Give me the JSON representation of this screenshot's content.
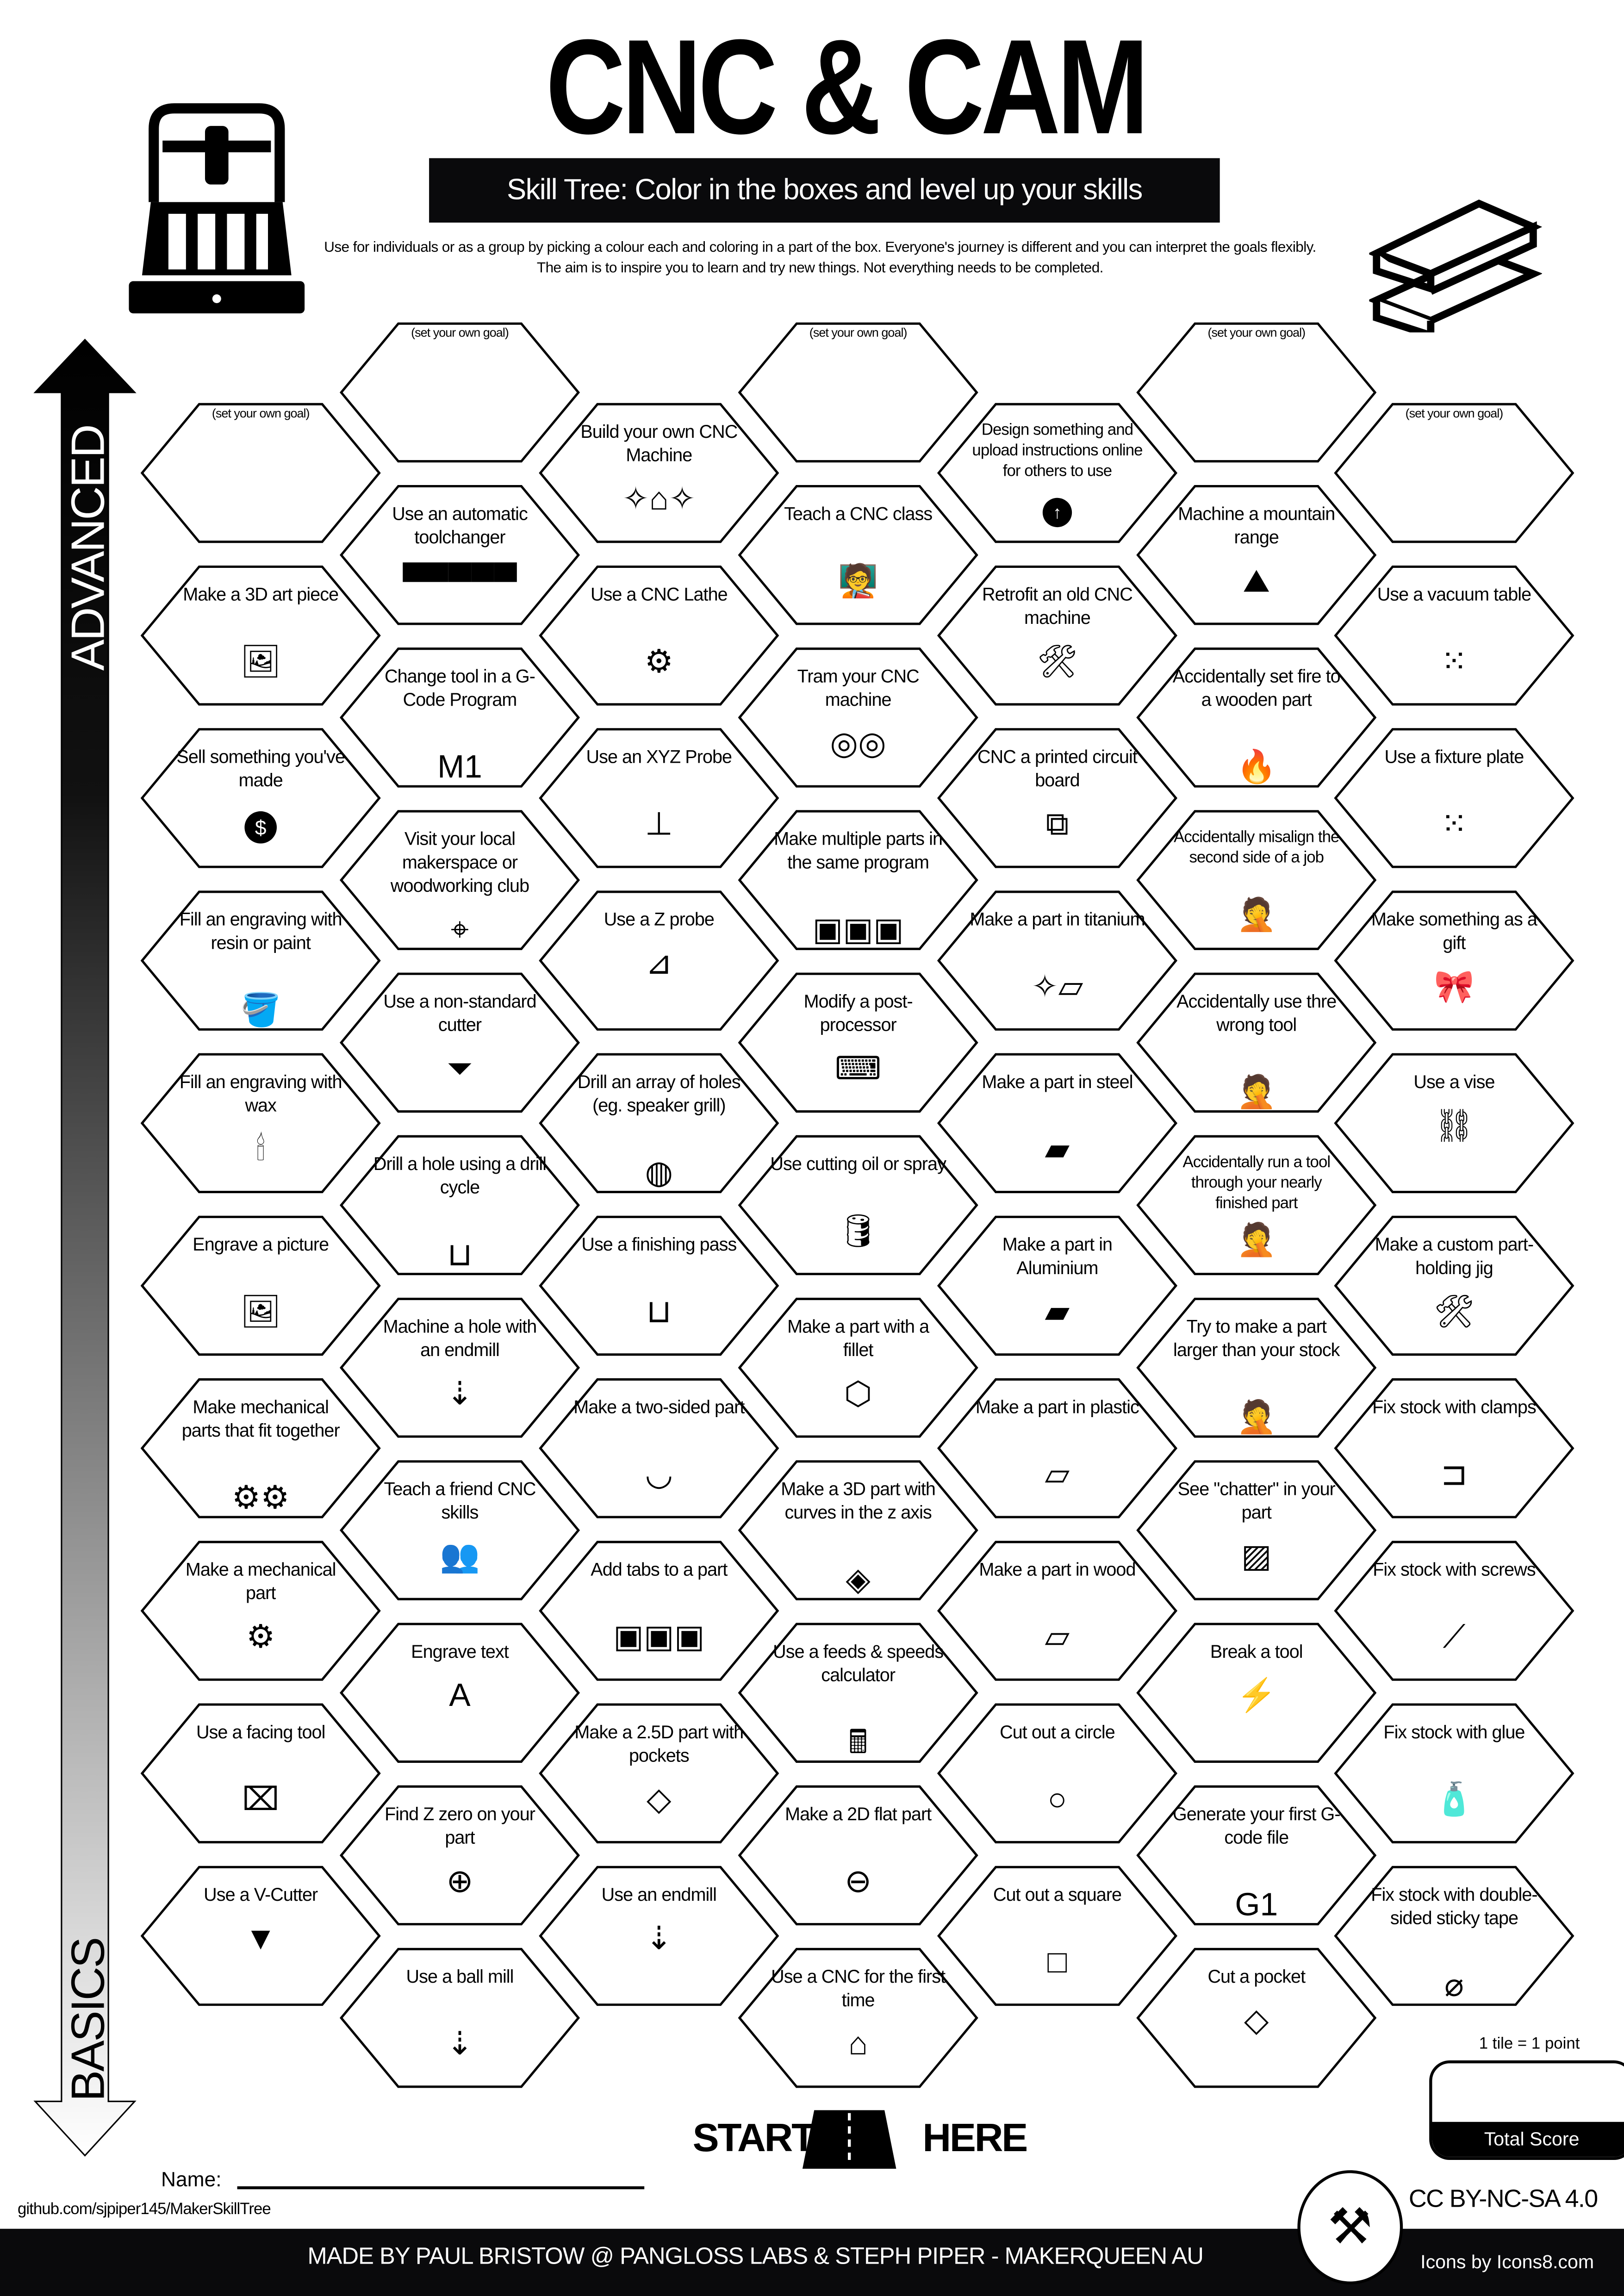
{
  "header": {
    "title": "CNC & CAM",
    "subtitle": "Skill Tree:  Color in the boxes and level up your skills",
    "description": "Use for individuals or as a group by picking a colour each and coloring in a part of the box.  Everyone's journey is different and you can interpret the goals flexibly.  The aim is to inspire you to learn and try new things. Not everything needs to be completed.",
    "left_icon": "cnc-machine-icon",
    "right_icon": "wood-planks-icon"
  },
  "arrow": {
    "top_label": "ADVANCED",
    "bottom_label": "BASICS"
  },
  "columns": [
    [
      {
        "label": "(set your own goal)",
        "goal": true
      },
      {
        "label": "Make a 3D art piece",
        "icon": "easel"
      },
      {
        "label": "Sell something you've made",
        "icon": "dollar"
      },
      {
        "label": "Fill an engraving with resin or paint",
        "icon": "paint-bucket"
      },
      {
        "label": "Fill an engraving with wax",
        "icon": "candle"
      },
      {
        "label": "Engrave a picture",
        "icon": "easel"
      },
      {
        "label": "Make mechanical parts that fit together",
        "icon": "gears"
      },
      {
        "label": "Make a mechanical part",
        "icon": "gear"
      },
      {
        "label": "Use a facing tool",
        "icon": "facing-tool"
      },
      {
        "label": "Use a V-Cutter",
        "icon": "v-cutter"
      }
    ],
    [
      {
        "label": "(set your own goal)",
        "goal": true
      },
      {
        "label": "Use an automatic toolchanger",
        "icon": "toolchanger"
      },
      {
        "label": "Change tool in a G-Code Program",
        "icon": "m1"
      },
      {
        "label": "Visit your local makerspace or woodworking club",
        "icon": "location-pin"
      },
      {
        "label": "Use a non-standard cutter",
        "icon": "cutter"
      },
      {
        "label": "Drill a hole using a drill cycle",
        "icon": "drill-hole"
      },
      {
        "label": "Machine a hole with an endmill",
        "icon": "endmill"
      },
      {
        "label": "Teach a friend CNC skills",
        "icon": "teach-friend"
      },
      {
        "label": "Engrave text",
        "icon": "letter-a"
      },
      {
        "label": "Find Z zero on your part",
        "icon": "crosshair"
      },
      {
        "label": "Use a ball mill",
        "icon": "endmill"
      }
    ],
    [
      {
        "label": "Build your own CNC Machine",
        "icon": "cnc-sparkles"
      },
      {
        "label": "Use a CNC Lathe",
        "icon": "lathe"
      },
      {
        "label": "Use an XYZ Probe",
        "icon": "probe"
      },
      {
        "label": "Use a Z probe",
        "icon": "z-probe"
      },
      {
        "label": "Drill an array of holes (eg. speaker grill)",
        "icon": "speaker-grill"
      },
      {
        "label": "Use a finishing pass",
        "icon": "drill-hole"
      },
      {
        "label": "Make a two-sided part",
        "icon": "bowl"
      },
      {
        "label": "Add tabs to a part",
        "icon": "tabs"
      },
      {
        "label": "Make a 2.5D part with pockets",
        "icon": "pocket"
      },
      {
        "label": "Use an endmill",
        "icon": "endmill"
      }
    ],
    [
      {
        "label": "(set your own goal)",
        "goal": true
      },
      {
        "label": "Teach a CNC class",
        "icon": "teacher"
      },
      {
        "label": "Tram your CNC machine",
        "icon": "gauges"
      },
      {
        "label": "Make multiple parts in the same program",
        "icon": "multi-parts"
      },
      {
        "label": "Modify a post-processor",
        "icon": "keyboard"
      },
      {
        "label": "Use cutting oil or spray",
        "icon": "oil-can"
      },
      {
        "label": "Make a part with a fillet",
        "icon": "fillet-block"
      },
      {
        "label": "Make a 3D part with curves in the z axis",
        "icon": "3d-part"
      },
      {
        "label": "Use a feeds & speeds calculator",
        "icon": "calculator"
      },
      {
        "label": "Make a 2D flat part",
        "icon": "flat-part"
      },
      {
        "label": "Use a CNC for the first time",
        "icon": "cnc-machine"
      }
    ],
    [
      {
        "label": "Design something and upload instructions online for others to use",
        "icon": "upload",
        "small": true
      },
      {
        "label": "Retrofit an old CNC machine",
        "icon": "tools"
      },
      {
        "label": "CNC a printed circuit board",
        "icon": "circuit"
      },
      {
        "label": "Make a part in titanium",
        "icon": "bar-sparkle"
      },
      {
        "label": "Make a part in steel",
        "icon": "bar-striped"
      },
      {
        "label": "Make a part in Aluminium",
        "icon": "bar"
      },
      {
        "label": "Make a part in plastic",
        "icon": "bar-plain"
      },
      {
        "label": "Make a part in wood",
        "icon": "wood"
      },
      {
        "label": "Cut out a circle",
        "icon": "circle"
      },
      {
        "label": "Cut out a square",
        "icon": "square"
      }
    ],
    [
      {
        "label": "(set your own goal)",
        "goal": true
      },
      {
        "label": "Machine a mountain range",
        "icon": "mountain"
      },
      {
        "label": "Accidentally set fire to a wooden part",
        "icon": "fire"
      },
      {
        "label": "Accidentally misalign the second side of a job",
        "icon": "facepalm",
        "small": true
      },
      {
        "label": "Accidentally use thre wrong tool",
        "icon": "facepalm"
      },
      {
        "label": "Accidentally run a tool through your nearly finished part",
        "icon": "facepalm",
        "small": true
      },
      {
        "label": "Try to make a part larger than your stock",
        "icon": "facepalm"
      },
      {
        "label": "See \"chatter\" in your part",
        "icon": "chatter"
      },
      {
        "label": "Break a tool",
        "icon": "broken-tool"
      },
      {
        "label": "Generate your first G-code file",
        "icon": "g1"
      },
      {
        "label": "Cut a pocket",
        "icon": "pocket"
      }
    ],
    [
      {
        "label": "(set your own goal)",
        "goal": true
      },
      {
        "label": "Use a vacuum table",
        "icon": "vacuum-table"
      },
      {
        "label": "Use a fixture plate",
        "icon": "vacuum-table"
      },
      {
        "label": "Make something as a gift",
        "icon": "gift-bow"
      },
      {
        "label": "Use a vise",
        "icon": "vise"
      },
      {
        "label": "Make a custom part-holding jig",
        "icon": "tools"
      },
      {
        "label": "Fix stock with clamps",
        "icon": "clamp"
      },
      {
        "label": "Fix stock with screws",
        "icon": "screw"
      },
      {
        "label": "Fix stock with glue",
        "icon": "glue"
      },
      {
        "label": "Fix stock with double-sided sticky tape",
        "icon": "tape"
      }
    ]
  ],
  "start": {
    "left": "START",
    "right": "HERE",
    "icon": "road-icon"
  },
  "score": {
    "note": "1 tile = 1 point",
    "label": "Total Score"
  },
  "name_label": "Name:",
  "github": "github.com/sjpiper145/MakerSkillTree",
  "license": "CC BY-NC-SA 4.0",
  "footer": {
    "credits": "MADE BY PAUL BRISTOW @ PANGLOSS LABS & STEPH PIPER  -  MAKERQUEEN AU",
    "icons_credit": "Icons by Icons8.com"
  }
}
